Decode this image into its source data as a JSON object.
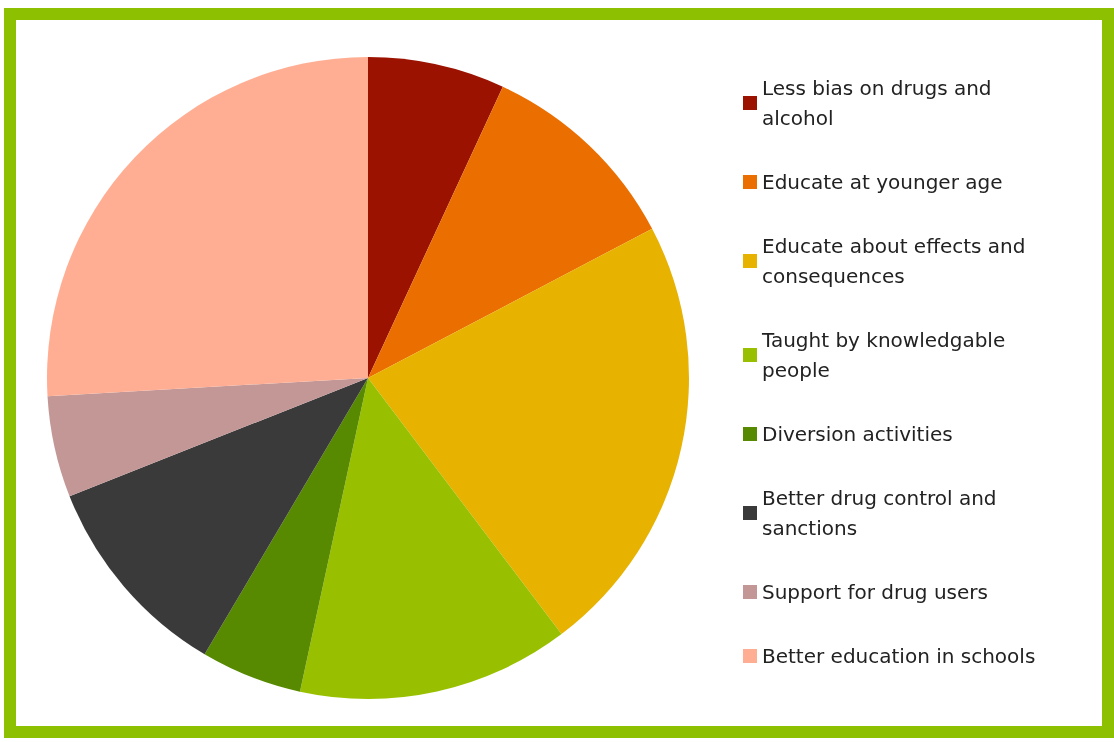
{
  "chart_data": {
    "type": "pie",
    "categories": [
      "Less bias on drugs and alcohol",
      "Educate at younger age",
      "Educate about effects and consequences",
      "Taught by knowledgable people",
      "Diversion activities",
      "Better drug control and sanctions",
      "Support for drug users",
      "Better education in schools"
    ],
    "values": [
      6.9,
      10.4,
      22.4,
      13.7,
      5.1,
      10.5,
      5.1,
      25.9
    ],
    "colors": [
      "#9b1200",
      "#eb6e00",
      "#e8b200",
      "#99c000",
      "#578a00",
      "#3a3a3a",
      "#c49797",
      "#ffae93"
    ],
    "legend": "right"
  }
}
